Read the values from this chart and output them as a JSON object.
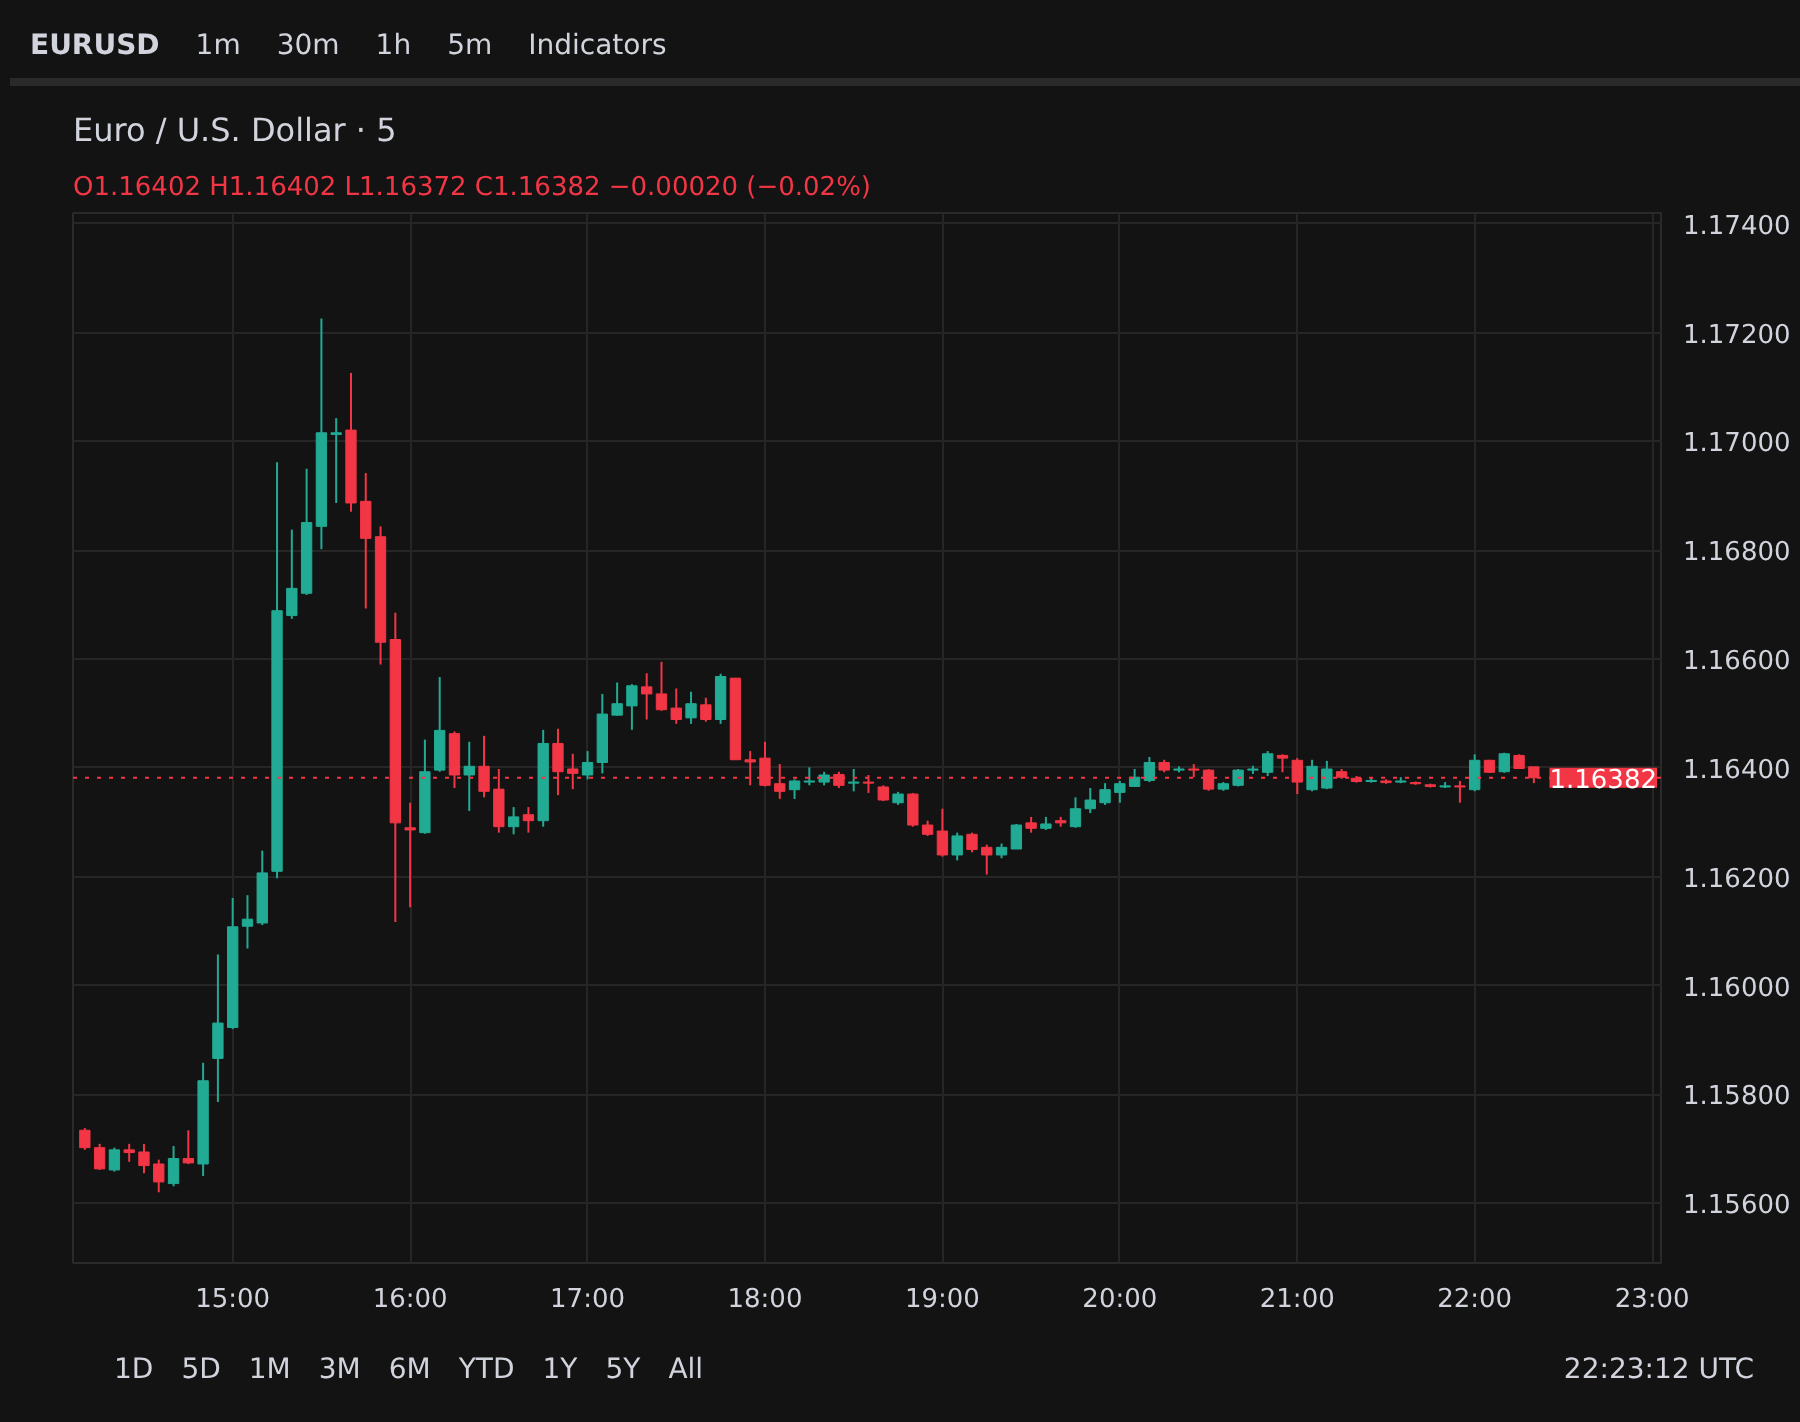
{
  "chart_data": {
    "type": "candlestick",
    "title": "Euro / U.S. Dollar · 5",
    "subtitle": "O1.16402 H1.16402 L1.16372 C1.16382 −0.00020 (−0.02%)",
    "annotations": [
      "EURUSD",
      "1m",
      "30m",
      "1h",
      "5m",
      "Indicators",
      "1D",
      "5D",
      "1M",
      "3M",
      "6M",
      "YTD",
      "1Y",
      "5Y",
      "All",
      "22:23:12 UTC"
    ],
    "x": [
      14.1667,
      14.25,
      14.3333,
      14.4167,
      14.5,
      14.5833,
      14.6667,
      14.75,
      14.8333,
      14.9167,
      15.0,
      15.0833,
      15.1667,
      15.25,
      15.3333,
      15.4167,
      15.5,
      15.5833,
      15.6667,
      15.75,
      15.8333,
      15.9167,
      16.0,
      16.0833,
      16.1667,
      16.25,
      16.3333,
      16.4167,
      16.5,
      16.5833,
      16.6667,
      16.75,
      16.8333,
      16.9167,
      17.0,
      17.0833,
      17.1667,
      17.25,
      17.3333,
      17.4167,
      17.5,
      17.5833,
      17.6667,
      17.75,
      17.8333,
      17.9167,
      18.0,
      18.0833,
      18.1667,
      18.25,
      18.3333,
      18.4167,
      18.5,
      18.5833,
      18.6667,
      18.75,
      18.8333,
      18.9167,
      19.0,
      19.0833,
      19.1667,
      19.25,
      19.3333,
      19.4167,
      19.5,
      19.5833,
      19.6667,
      19.75,
      19.8333,
      19.9167,
      20.0,
      20.0833,
      20.1667,
      20.25,
      20.3333,
      20.4167,
      20.5,
      20.5833,
      20.6667,
      20.75,
      20.8333,
      20.9167,
      21.0,
      21.0833,
      21.1667,
      21.25,
      21.3333,
      21.4167,
      21.5,
      21.5833,
      21.6667,
      21.75,
      21.8333,
      21.9167,
      22.0,
      22.0833,
      22.1667,
      22.25,
      22.3333
    ],
    "ohlc": [
      [
        1.15734,
        1.15738,
        1.15698,
        1.15702
      ],
      [
        1.15702,
        1.15709,
        1.15661,
        1.15663
      ],
      [
        1.15661,
        1.15702,
        1.15658,
        1.15698
      ],
      [
        1.15698,
        1.15709,
        1.15676,
        1.15693
      ],
      [
        1.15694,
        1.15709,
        1.15655,
        1.15669
      ],
      [
        1.15672,
        1.1568,
        1.1562,
        1.15639
      ],
      [
        1.15636,
        1.15705,
        1.15631,
        1.15682
      ],
      [
        1.15682,
        1.15734,
        1.15672,
        1.15674
      ],
      [
        1.15672,
        1.15858,
        1.1565,
        1.15825
      ],
      [
        1.15866,
        1.16057,
        1.15786,
        1.15931
      ],
      [
        1.15923,
        1.16161,
        1.1592,
        1.16108
      ],
      [
        1.16109,
        1.16166,
        1.16068,
        1.16122
      ],
      [
        1.16115,
        1.16248,
        1.16111,
        1.16207
      ],
      [
        1.1621,
        1.16962,
        1.16197,
        1.16689
      ],
      [
        1.1668,
        1.16838,
        1.16674,
        1.1673
      ],
      [
        1.16721,
        1.1695,
        1.16718,
        1.16851
      ],
      [
        1.16844,
        1.17226,
        1.16802,
        1.17016
      ],
      [
        1.17013,
        1.17043,
        1.16887,
        1.17016
      ],
      [
        1.17021,
        1.17126,
        1.16871,
        1.16887
      ],
      [
        1.1689,
        1.16942,
        1.16693,
        1.16822
      ],
      [
        1.16825,
        1.16844,
        1.1659,
        1.16631
      ],
      [
        1.16636,
        1.16685,
        1.16117,
        1.16299
      ],
      [
        1.1629,
        1.16336,
        1.16144,
        1.16286
      ],
      [
        1.16281,
        1.16452,
        1.16279,
        1.16393
      ],
      [
        1.16396,
        1.16567,
        1.16393,
        1.16469
      ],
      [
        1.16463,
        1.16467,
        1.16363,
        1.16387
      ],
      [
        1.16387,
        1.16448,
        1.16321,
        1.16403
      ],
      [
        1.16403,
        1.16459,
        1.16346,
        1.16357
      ],
      [
        1.16361,
        1.16398,
        1.16281,
        1.16292
      ],
      [
        1.16292,
        1.16328,
        1.16278,
        1.1631
      ],
      [
        1.16314,
        1.16328,
        1.16281,
        1.16303
      ],
      [
        1.16303,
        1.1647,
        1.16292,
        1.16445
      ],
      [
        1.16445,
        1.16472,
        1.1635,
        1.16393
      ],
      [
        1.16398,
        1.16426,
        1.16361,
        1.1639
      ],
      [
        1.16387,
        1.16431,
        1.16379,
        1.1641
      ],
      [
        1.1641,
        1.16536,
        1.1639,
        1.16499
      ],
      [
        1.16497,
        1.16557,
        1.16496,
        1.16518
      ],
      [
        1.16514,
        1.16554,
        1.1647,
        1.16551
      ],
      [
        1.16549,
        1.16574,
        1.16489,
        1.16536
      ],
      [
        1.16536,
        1.16595,
        1.16505,
        1.16507
      ],
      [
        1.1651,
        1.16546,
        1.16481,
        1.16489
      ],
      [
        1.16492,
        1.1654,
        1.16481,
        1.16518
      ],
      [
        1.16516,
        1.16529,
        1.16485,
        1.16489
      ],
      [
        1.16489,
        1.16573,
        1.16481,
        1.16568
      ],
      [
        1.16565,
        1.16565,
        1.16415,
        1.16415
      ],
      [
        1.16415,
        1.16431,
        1.16368,
        1.16411
      ],
      [
        1.16418,
        1.16448,
        1.16366,
        1.16368
      ],
      [
        1.16371,
        1.16407,
        1.16343,
        1.16357
      ],
      [
        1.1636,
        1.16379,
        1.16343,
        1.16376
      ],
      [
        1.16374,
        1.16401,
        1.16368,
        1.16376
      ],
      [
        1.16374,
        1.16393,
        1.16368,
        1.16387
      ],
      [
        1.16388,
        1.16393,
        1.16363,
        1.16368
      ],
      [
        1.16372,
        1.16398,
        1.16357,
        1.16374
      ],
      [
        1.16374,
        1.16387,
        1.16354,
        1.16372
      ],
      [
        1.16365,
        1.16368,
        1.16339,
        1.16341
      ],
      [
        1.16336,
        1.16356,
        1.16332,
        1.16352
      ],
      [
        1.16352,
        1.16354,
        1.16292,
        1.16295
      ],
      [
        1.16295,
        1.16303,
        1.16275,
        1.16278
      ],
      [
        1.16284,
        1.16325,
        1.16237,
        1.1624
      ],
      [
        1.1624,
        1.16281,
        1.1623,
        1.16275
      ],
      [
        1.16278,
        1.16281,
        1.16245,
        1.1625
      ],
      [
        1.16254,
        1.16259,
        1.16204,
        1.1624
      ],
      [
        1.1624,
        1.16261,
        1.16234,
        1.16254
      ],
      [
        1.16251,
        1.16297,
        1.16251,
        1.16295
      ],
      [
        1.16299,
        1.1631,
        1.16281,
        1.16289
      ],
      [
        1.16289,
        1.1631,
        1.16286,
        1.16297
      ],
      [
        1.16303,
        1.1631,
        1.16292,
        1.16299
      ],
      [
        1.16292,
        1.16346,
        1.1629,
        1.16325
      ],
      [
        1.16325,
        1.16363,
        1.16317,
        1.16341
      ],
      [
        1.16336,
        1.16372,
        1.16332,
        1.1636
      ],
      [
        1.16355,
        1.16376,
        1.16336,
        1.16371
      ],
      [
        1.16366,
        1.16398,
        1.16365,
        1.16383
      ],
      [
        1.16377,
        1.1642,
        1.16374,
        1.1641
      ],
      [
        1.1641,
        1.16415,
        1.16392,
        1.16396
      ],
      [
        1.16396,
        1.16403,
        1.16392,
        1.16398
      ],
      [
        1.16398,
        1.16407,
        1.16383,
        1.16396
      ],
      [
        1.16396,
        1.16398,
        1.16358,
        1.16361
      ],
      [
        1.16361,
        1.16374,
        1.16358,
        1.16371
      ],
      [
        1.16368,
        1.16398,
        1.16366,
        1.16396
      ],
      [
        1.16396,
        1.16404,
        1.16389,
        1.16398
      ],
      [
        1.16392,
        1.16431,
        1.16385,
        1.16426
      ],
      [
        1.16423,
        1.16425,
        1.16392,
        1.16418
      ],
      [
        1.16414,
        1.16418,
        1.16352,
        1.16374
      ],
      [
        1.1636,
        1.16415,
        1.16357,
        1.16403
      ],
      [
        1.16363,
        1.16413,
        1.16361,
        1.16398
      ],
      [
        1.16393,
        1.16398,
        1.1638,
        1.16383
      ],
      [
        1.16381,
        1.16385,
        1.16373,
        1.16375
      ],
      [
        1.16375,
        1.16383,
        1.16373,
        1.16377
      ],
      [
        1.16376,
        1.16379,
        1.16371,
        1.16373
      ],
      [
        1.16374,
        1.16383,
        1.16372,
        1.16376
      ],
      [
        1.16373,
        1.16375,
        1.16369,
        1.16371
      ],
      [
        1.16369,
        1.16371,
        1.16364,
        1.16366
      ],
      [
        1.16365,
        1.16374,
        1.16363,
        1.16367
      ],
      [
        1.16367,
        1.16376,
        1.16336,
        1.16365
      ],
      [
        1.1636,
        1.16425,
        1.16357,
        1.16414
      ],
      [
        1.16414,
        1.16415,
        1.16391,
        1.16392
      ],
      [
        1.16393,
        1.16428,
        1.16391,
        1.16426
      ],
      [
        1.16423,
        1.16425,
        1.16398,
        1.16399
      ],
      [
        1.16402,
        1.16402,
        1.16372,
        1.16382
      ]
    ],
    "colors": [
      "#f23645",
      "#f23645",
      "#22ab94",
      "#f23645",
      "#f23645",
      "#f23645",
      "#22ab94",
      "#f23645",
      "#22ab94",
      "#22ab94",
      "#22ab94",
      "#22ab94",
      "#22ab94",
      "#22ab94",
      "#22ab94",
      "#22ab94",
      "#22ab94",
      "#22ab94",
      "#f23645",
      "#f23645",
      "#f23645",
      "#f23645",
      "#f23645",
      "#22ab94",
      "#22ab94",
      "#f23645",
      "#22ab94",
      "#f23645",
      "#f23645",
      "#22ab94",
      "#f23645",
      "#22ab94",
      "#f23645",
      "#f23645",
      "#22ab94",
      "#22ab94",
      "#22ab94",
      "#22ab94",
      "#f23645",
      "#f23645",
      "#f23645",
      "#22ab94",
      "#f23645",
      "#22ab94",
      "#f23645",
      "#f23645",
      "#f23645",
      "#f23645",
      "#22ab94",
      "#22ab94",
      "#22ab94",
      "#f23645",
      "#22ab94",
      "#f23645",
      "#f23645",
      "#22ab94",
      "#f23645",
      "#f23645",
      "#f23645",
      "#22ab94",
      "#f23645",
      "#f23645",
      "#22ab94",
      "#22ab94",
      "#f23645",
      "#22ab94",
      "#f23645",
      "#22ab94",
      "#22ab94",
      "#22ab94",
      "#22ab94",
      "#22ab94",
      "#22ab94",
      "#f23645",
      "#22ab94",
      "#f23645",
      "#f23645",
      "#22ab94",
      "#22ab94",
      "#22ab94",
      "#22ab94",
      "#f23645",
      "#f23645",
      "#22ab94",
      "#22ab94",
      "#f23645",
      "#f23645",
      "#22ab94",
      "#f23645",
      "#22ab94",
      "#f23645",
      "#f23645",
      "#22ab94",
      "#f23645",
      "#22ab94",
      "#f23645",
      "#22ab94",
      "#f23645",
      "#f23645"
    ],
    "xlim": [
      14.1,
      23.05
    ],
    "xticks": [
      {
        "value": 15,
        "label": "15:00"
      },
      {
        "value": 16,
        "label": "16:00"
      },
      {
        "value": 17,
        "label": "17:00"
      },
      {
        "value": 18,
        "label": "18:00"
      },
      {
        "value": 19,
        "label": "19:00"
      },
      {
        "value": 20,
        "label": "20:00"
      },
      {
        "value": 21,
        "label": "21:00"
      },
      {
        "value": 22,
        "label": "22:00"
      },
      {
        "value": 23,
        "label": "23:00"
      }
    ],
    "ylim": [
      1.1549,
      1.1742
    ],
    "yticks": [
      {
        "value": 1.156,
        "label": "1.15600"
      },
      {
        "value": 1.158,
        "label": "1.15800"
      },
      {
        "value": 1.16,
        "label": "1.16000"
      },
      {
        "value": 1.162,
        "label": "1.16200"
      },
      {
        "value": 1.164,
        "label": "1.16400"
      },
      {
        "value": 1.166,
        "label": "1.16600"
      },
      {
        "value": 1.168,
        "label": "1.16800"
      },
      {
        "value": 1.17,
        "label": "1.17000"
      },
      {
        "value": 1.172,
        "label": "1.17200"
      },
      {
        "value": 1.174,
        "label": "1.17400"
      }
    ],
    "ref_lines": [
      {
        "axis": "y",
        "value": 1.16382,
        "label": "1.16382",
        "color": "#f23645",
        "line_style": "dotted"
      }
    ],
    "grid": true
  }
}
